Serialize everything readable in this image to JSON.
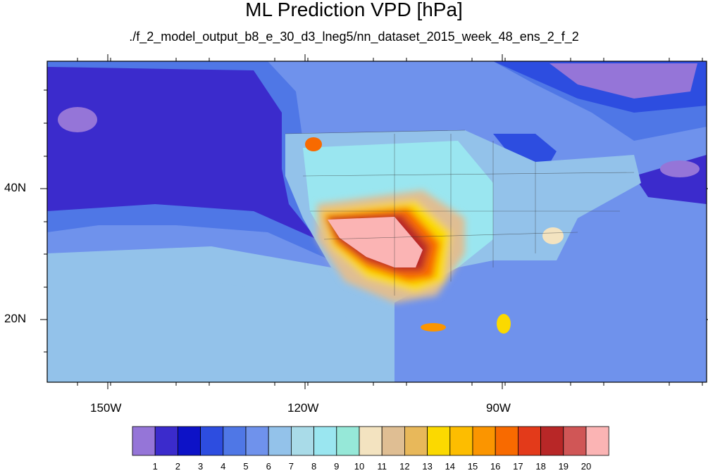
{
  "title": "ML Prediction VPD [hPa]",
  "subtitle": "./f_2_model_output_b8_e_30_d3_lneg5/nn_dataset_2015_week_48_ens_2_f_2",
  "axes": {
    "lon_labels": [
      "150W",
      "120W",
      "90W"
    ],
    "lat_labels": [
      "40N",
      "20N"
    ]
  },
  "colorbar": {
    "colors": [
      "#9575d8",
      "#3b2bcc",
      "#0d12c7",
      "#2d4de0",
      "#4f77e6",
      "#6f92ec",
      "#93c2ea",
      "#a9dbe8",
      "#9ae6f0",
      "#96e8d8",
      "#f3e3c0",
      "#dfbe93",
      "#e8b85a",
      "#fbd900",
      "#fdbd00",
      "#fb9500",
      "#f86a00",
      "#e33a1a",
      "#b82727",
      "#d05656",
      "#fbb4b4"
    ],
    "labels": [
      "1",
      "2",
      "3",
      "4",
      "5",
      "6",
      "7",
      "8",
      "9",
      "10",
      "11",
      "12",
      "13",
      "14",
      "15",
      "16",
      "17",
      "18",
      "19",
      "20"
    ]
  }
}
